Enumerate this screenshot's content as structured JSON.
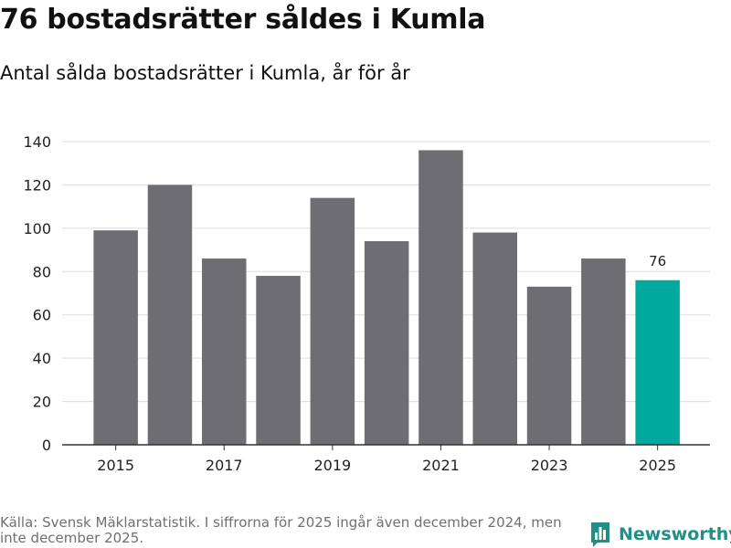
{
  "header": {
    "title": "76 bostadsrätter såldes i Kumla",
    "subtitle": "Antal sålda bostadsrätter i Kumla, år för år"
  },
  "footer": {
    "source": "Källa: Svensk Mäklarstatistik. I siffrorna för 2025 ingår även december 2024, men inte december 2025.",
    "brand": "Newsworthy",
    "brand_icon": "newsworthy-logo-icon"
  },
  "colors": {
    "bar": "#6e6d72",
    "highlight": "#00a99d",
    "grid": "#dddddd",
    "brand": "#1f8f88"
  },
  "chart_data": {
    "type": "bar",
    "categories": [
      "2015",
      "2016",
      "2017",
      "2018",
      "2019",
      "2020",
      "2021",
      "2022",
      "2023",
      "2024",
      "2025"
    ],
    "values": [
      99,
      120,
      86,
      78,
      114,
      94,
      136,
      98,
      73,
      86,
      76
    ],
    "x_tick_labels": [
      "2015",
      "2017",
      "2019",
      "2021",
      "2023",
      "2025"
    ],
    "y_ticks": [
      0,
      20,
      40,
      60,
      80,
      100,
      120,
      140
    ],
    "ylim": [
      0,
      140
    ],
    "highlight_category": "2025",
    "data_labels": [
      {
        "category": "2025",
        "text": "76"
      }
    ],
    "grid": true,
    "legend": "none"
  }
}
